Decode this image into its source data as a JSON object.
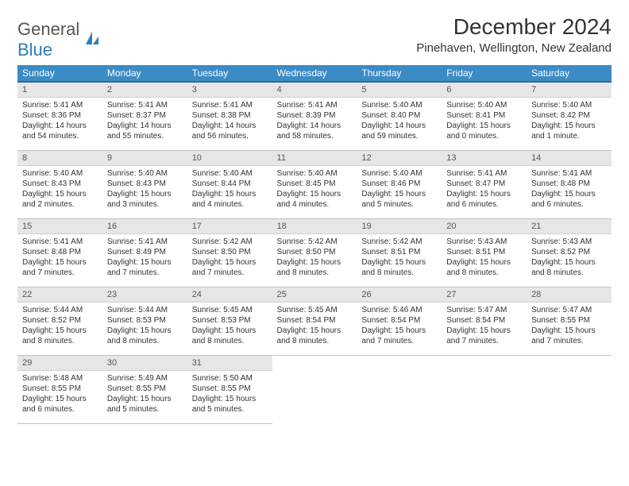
{
  "logo": {
    "line1": "General",
    "line2": "Blue"
  },
  "title": "December 2024",
  "location": "Pinehaven, Wellington, New Zealand",
  "colors": {
    "header_bg": "#3b8bc4",
    "header_border": "#2c6a99",
    "daynum_bg": "#e6e6e6",
    "row_border": "#c0c0c0",
    "text": "#333333",
    "logo_gray": "#555555",
    "logo_blue": "#2c7fb8"
  },
  "weekdays": [
    "Sunday",
    "Monday",
    "Tuesday",
    "Wednesday",
    "Thursday",
    "Friday",
    "Saturday"
  ],
  "weeks": [
    [
      {
        "n": "1",
        "sunrise": "5:41 AM",
        "sunset": "8:36 PM",
        "daylight": "14 hours and 54 minutes."
      },
      {
        "n": "2",
        "sunrise": "5:41 AM",
        "sunset": "8:37 PM",
        "daylight": "14 hours and 55 minutes."
      },
      {
        "n": "3",
        "sunrise": "5:41 AM",
        "sunset": "8:38 PM",
        "daylight": "14 hours and 56 minutes."
      },
      {
        "n": "4",
        "sunrise": "5:41 AM",
        "sunset": "8:39 PM",
        "daylight": "14 hours and 58 minutes."
      },
      {
        "n": "5",
        "sunrise": "5:40 AM",
        "sunset": "8:40 PM",
        "daylight": "14 hours and 59 minutes."
      },
      {
        "n": "6",
        "sunrise": "5:40 AM",
        "sunset": "8:41 PM",
        "daylight": "15 hours and 0 minutes."
      },
      {
        "n": "7",
        "sunrise": "5:40 AM",
        "sunset": "8:42 PM",
        "daylight": "15 hours and 1 minute."
      }
    ],
    [
      {
        "n": "8",
        "sunrise": "5:40 AM",
        "sunset": "8:43 PM",
        "daylight": "15 hours and 2 minutes."
      },
      {
        "n": "9",
        "sunrise": "5:40 AM",
        "sunset": "8:43 PM",
        "daylight": "15 hours and 3 minutes."
      },
      {
        "n": "10",
        "sunrise": "5:40 AM",
        "sunset": "8:44 PM",
        "daylight": "15 hours and 4 minutes."
      },
      {
        "n": "11",
        "sunrise": "5:40 AM",
        "sunset": "8:45 PM",
        "daylight": "15 hours and 4 minutes."
      },
      {
        "n": "12",
        "sunrise": "5:40 AM",
        "sunset": "8:46 PM",
        "daylight": "15 hours and 5 minutes."
      },
      {
        "n": "13",
        "sunrise": "5:41 AM",
        "sunset": "8:47 PM",
        "daylight": "15 hours and 6 minutes."
      },
      {
        "n": "14",
        "sunrise": "5:41 AM",
        "sunset": "8:48 PM",
        "daylight": "15 hours and 6 minutes."
      }
    ],
    [
      {
        "n": "15",
        "sunrise": "5:41 AM",
        "sunset": "8:48 PM",
        "daylight": "15 hours and 7 minutes."
      },
      {
        "n": "16",
        "sunrise": "5:41 AM",
        "sunset": "8:49 PM",
        "daylight": "15 hours and 7 minutes."
      },
      {
        "n": "17",
        "sunrise": "5:42 AM",
        "sunset": "8:50 PM",
        "daylight": "15 hours and 7 minutes."
      },
      {
        "n": "18",
        "sunrise": "5:42 AM",
        "sunset": "8:50 PM",
        "daylight": "15 hours and 8 minutes."
      },
      {
        "n": "19",
        "sunrise": "5:42 AM",
        "sunset": "8:51 PM",
        "daylight": "15 hours and 8 minutes."
      },
      {
        "n": "20",
        "sunrise": "5:43 AM",
        "sunset": "8:51 PM",
        "daylight": "15 hours and 8 minutes."
      },
      {
        "n": "21",
        "sunrise": "5:43 AM",
        "sunset": "8:52 PM",
        "daylight": "15 hours and 8 minutes."
      }
    ],
    [
      {
        "n": "22",
        "sunrise": "5:44 AM",
        "sunset": "8:52 PM",
        "daylight": "15 hours and 8 minutes."
      },
      {
        "n": "23",
        "sunrise": "5:44 AM",
        "sunset": "8:53 PM",
        "daylight": "15 hours and 8 minutes."
      },
      {
        "n": "24",
        "sunrise": "5:45 AM",
        "sunset": "8:53 PM",
        "daylight": "15 hours and 8 minutes."
      },
      {
        "n": "25",
        "sunrise": "5:45 AM",
        "sunset": "8:54 PM",
        "daylight": "15 hours and 8 minutes."
      },
      {
        "n": "26",
        "sunrise": "5:46 AM",
        "sunset": "8:54 PM",
        "daylight": "15 hours and 7 minutes."
      },
      {
        "n": "27",
        "sunrise": "5:47 AM",
        "sunset": "8:54 PM",
        "daylight": "15 hours and 7 minutes."
      },
      {
        "n": "28",
        "sunrise": "5:47 AM",
        "sunset": "8:55 PM",
        "daylight": "15 hours and 7 minutes."
      }
    ],
    [
      {
        "n": "29",
        "sunrise": "5:48 AM",
        "sunset": "8:55 PM",
        "daylight": "15 hours and 6 minutes."
      },
      {
        "n": "30",
        "sunrise": "5:49 AM",
        "sunset": "8:55 PM",
        "daylight": "15 hours and 5 minutes."
      },
      {
        "n": "31",
        "sunrise": "5:50 AM",
        "sunset": "8:55 PM",
        "daylight": "15 hours and 5 minutes."
      },
      null,
      null,
      null,
      null
    ]
  ],
  "labels": {
    "sunrise": "Sunrise:",
    "sunset": "Sunset:",
    "daylight": "Daylight:"
  }
}
